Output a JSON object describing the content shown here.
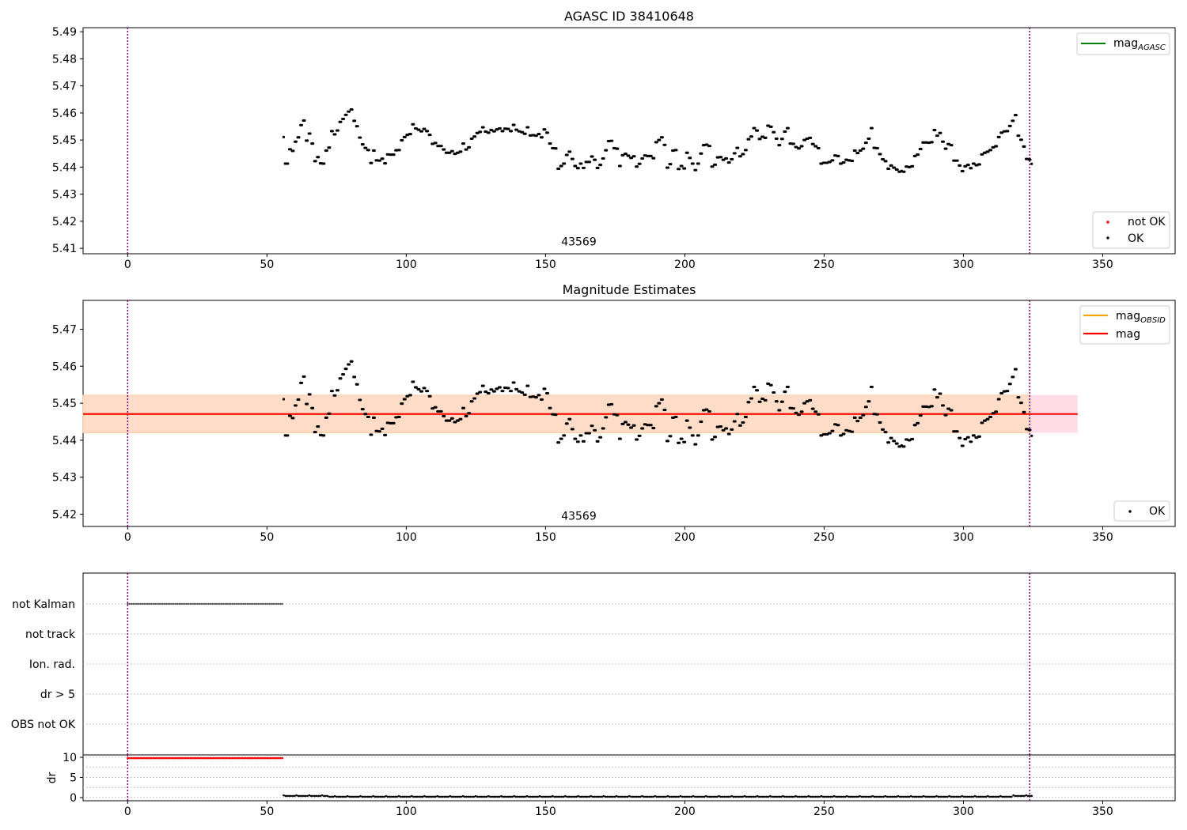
{
  "figure": {
    "top_title": "AGASC ID 38410648",
    "middle_title": "Magnitude Estimates",
    "obsid_label": "43569"
  },
  "legends": {
    "top_line": "mag",
    "top_line_sub": "AGASC",
    "top_points_not_ok": "not OK",
    "top_points_ok": "OK",
    "mid_line_obsid": "mag",
    "mid_line_obsid_sub": "OBSID",
    "mid_line_mag": "mag",
    "mid_points_ok": "OK"
  },
  "colors": {
    "ok": "#000000",
    "not_ok": "#ff0000",
    "mag_agasc": "#008000",
    "mag_obsid": "#ffa500",
    "mag": "#ff0000",
    "obs_boundary": "#800080",
    "band_outer": "#ffdce6",
    "band_inner": "#ffdcc8"
  },
  "chart_data": [
    {
      "type": "scatter",
      "title": "AGASC ID 38410648",
      "xlim": [
        -16,
        376
      ],
      "ylim": [
        5.408,
        5.4915
      ],
      "x_ticks": [
        0,
        50,
        100,
        150,
        200,
        250,
        300,
        350
      ],
      "y_ticks": [
        5.41,
        5.42,
        5.43,
        5.44,
        5.45,
        5.46,
        5.47,
        5.48,
        5.49
      ],
      "grid": false,
      "legend": [
        "top-right",
        "bottom-right"
      ],
      "obs_start": 0,
      "obs_end": 323.8,
      "annotation": {
        "text": "43569",
        "x": 154,
        "y": 5.411
      },
      "series": [
        {
          "name": "OK",
          "x_start": 56,
          "x_end": 324.5,
          "n": 410,
          "values": "magnitude_ok"
        },
        {
          "name": "not OK",
          "values": []
        }
      ]
    },
    {
      "type": "scatter",
      "title": "Magnitude Estimates",
      "xlim": [
        -16,
        376
      ],
      "ylim": [
        5.4167,
        5.4778
      ],
      "x_ticks": [
        0,
        50,
        100,
        150,
        200,
        250,
        300,
        350
      ],
      "y_ticks": [
        5.42,
        5.43,
        5.44,
        5.45,
        5.46,
        5.47
      ],
      "grid": false,
      "legend": [
        "top-right",
        "bottom-right"
      ],
      "obs_start": 0,
      "obs_end": 323.8,
      "mag_obsid": 5.4471,
      "mag": 5.4471,
      "band_obsid": [
        5.442,
        5.4522
      ],
      "band_obsid_x": [
        -16,
        324
      ],
      "band_mag_x": [
        -16,
        341
      ],
      "annotation": {
        "text": "43569",
        "x": 154,
        "y": 5.4185
      }
    },
    {
      "type": "scatter",
      "title": "",
      "xlim": [
        -16,
        376
      ],
      "categories": [
        "not Kalman",
        "not track",
        "Ion. rad.",
        "dr > 5",
        "OBS not OK"
      ],
      "flags": [
        {
          "name": "not Kalman",
          "x_start": 0,
          "x_end": 55.5,
          "n": 85
        }
      ],
      "grid": true
    },
    {
      "type": "scatter",
      "title": "",
      "xlim": [
        -16,
        376
      ],
      "ylim": [
        -0.8,
        10.6
      ],
      "x_ticks": [
        0,
        50,
        100,
        150,
        200,
        250,
        300,
        350
      ],
      "y_ticks": [
        0,
        5,
        10
      ],
      "ylabel": "dr",
      "grid": true,
      "series": [
        {
          "name": "dr",
          "x_start": 0,
          "x_end": 55.5,
          "n": 85,
          "value": 9.8,
          "ok": false
        },
        {
          "name": "dr",
          "x_start": 56,
          "x_end": 324.5,
          "n": 410,
          "value": 0.2,
          "ok": true
        }
      ]
    }
  ],
  "magnitude_ok": [
    5.4511,
    5.4413,
    5.4413,
    5.4413,
    5.4466,
    5.4466,
    5.446,
    5.446,
    5.4494,
    5.4494,
    5.451,
    5.451,
    5.4555,
    5.4555,
    5.4572,
    5.4572,
    5.4498,
    5.4498,
    5.4524,
    5.4524,
    5.4487,
    5.4487,
    5.4422,
    5.4422,
    5.4437,
    5.4437,
    5.4414,
    5.4414,
    5.4413,
    5.4413,
    5.4461,
    5.4461,
    5.4472,
    5.4472,
    5.4533,
    5.4533,
    5.4521,
    5.4521,
    5.4535,
    5.4535,
    5.4567,
    5.4567,
    5.4578,
    5.4578,
    5.4593,
    5.4593,
    5.4605,
    5.4605,
    5.4613,
    5.4613,
    5.4571,
    5.4571,
    5.4551,
    5.4551,
    5.4509,
    5.4509,
    5.4484,
    5.4484,
    5.4471,
    5.4471,
    5.4463,
    5.4463,
    5.4415,
    5.4415,
    5.4461,
    5.4461,
    5.4425,
    5.4425,
    5.4424,
    5.4424,
    5.4431,
    5.4431,
    5.4414,
    5.4414,
    5.4447,
    5.4447,
    5.4446,
    5.4446,
    5.4446,
    5.4446,
    5.4462,
    5.4462,
    5.4463,
    5.4463,
    5.4499,
    5.4499,
    5.4511,
    5.4511,
    5.4519,
    5.4519,
    5.4522,
    5.4522,
    5.4558,
    5.4558,
    5.4543,
    5.4543,
    5.4538,
    5.4538,
    5.4532,
    5.4532,
    5.4541,
    5.4541,
    5.4533,
    5.4533,
    5.4519,
    5.4519,
    5.4486,
    5.4486,
    5.4489,
    5.4489,
    5.4478,
    5.4478,
    5.4478,
    5.4478,
    5.4465,
    5.4465,
    5.4453,
    5.4453,
    5.4453,
    5.4453,
    5.4459,
    5.4459,
    5.4449,
    5.4449,
    5.4453,
    5.4453,
    5.4457,
    5.4457,
    5.4487,
    5.4487,
    5.4465,
    5.4465,
    5.4473,
    5.4473,
    5.4505,
    5.4505,
    5.4513,
    5.4513,
    5.4526,
    5.4526,
    5.453,
    5.453,
    5.4547,
    5.4547,
    5.4531,
    5.4531,
    5.4527,
    5.4527,
    5.4537,
    5.4537,
    5.4532,
    5.4532,
    5.4539,
    5.4539,
    5.4543,
    5.4543,
    5.4533,
    5.4533,
    5.4542,
    5.4542,
    5.4541,
    5.4541,
    5.4533,
    5.4533,
    5.4556,
    5.4556,
    5.4538,
    5.4538,
    5.4532,
    5.4532,
    5.4529,
    5.4529,
    5.4523,
    5.4523,
    5.4547,
    5.4547,
    5.4517,
    5.4517,
    5.4518,
    5.4518,
    5.4516,
    5.4516,
    5.4522,
    5.4522,
    5.451,
    5.451,
    5.4539,
    5.4539,
    5.4527,
    5.4527,
    5.4487,
    5.4487,
    5.447,
    5.447,
    5.4469,
    5.4469,
    5.4394,
    5.4394,
    5.4404,
    5.4404,
    5.4413,
    5.4413,
    5.4445,
    5.4445,
    5.4457,
    5.4457,
    5.443,
    5.443,
    5.4404,
    5.4404,
    5.4396,
    5.4396,
    5.4413,
    5.4413,
    5.4397,
    5.4397,
    5.4419,
    5.4419,
    5.4419,
    5.4419,
    5.4439,
    5.4439,
    5.4427,
    5.4427,
    5.4397,
    5.4397,
    5.4408,
    5.4408,
    5.4432,
    5.4432,
    5.4462,
    5.4462,
    5.4496,
    5.4496,
    5.4497,
    5.4497,
    5.447,
    5.447,
    5.4468,
    5.4468,
    5.4404,
    5.4404,
    5.4444,
    5.4444,
    5.4449,
    5.4449,
    5.4442,
    5.4442,
    5.4434,
    5.4434,
    5.444,
    5.444,
    5.4402,
    5.4402,
    5.4412,
    5.4412,
    5.4432,
    5.4432,
    5.4443,
    5.4443,
    5.4441,
    5.4441,
    5.4441,
    5.4441,
    5.4433,
    5.4433,
    5.4492,
    5.4492,
    5.45,
    5.45,
    5.451,
    5.451,
    5.4482,
    5.4482,
    5.4398,
    5.4398,
    5.4411,
    5.4411,
    5.4461,
    5.4461,
    5.4463,
    5.4463,
    5.4393,
    5.4393,
    5.4404,
    5.4404,
    5.4395,
    5.4395,
    5.4453,
    5.4453,
    5.4434,
    5.4434,
    5.4413,
    5.4413,
    5.4389,
    5.4389,
    5.4413,
    5.4413,
    5.445,
    5.445,
    5.4481,
    5.4481,
    5.4483,
    5.4483,
    5.4478,
    5.4478,
    5.4402,
    5.4402,
    5.4409,
    5.4409,
    5.4436,
    5.4436,
    5.4437,
    5.4437,
    5.4427,
    5.4427,
    5.4432,
    5.4432,
    5.4417,
    5.4417,
    5.4429,
    5.4429,
    5.4451,
    5.4451,
    5.4471,
    5.4471,
    5.444,
    5.444,
    5.4448,
    5.4448,
    5.4463,
    5.4463,
    5.4503,
    5.4503,
    5.4513,
    5.4513,
    5.4544,
    5.4544,
    5.4535,
    5.4535,
    5.4504,
    5.4504,
    5.4512,
    5.4512,
    5.4508,
    5.4508,
    5.4553,
    5.4553,
    5.4549,
    5.4549,
    5.4529,
    5.4529,
    5.4505,
    5.4505,
    5.4481,
    5.4481,
    5.4504,
    5.4504,
    5.4531,
    5.4531,
    5.4544,
    5.4544,
    5.4487,
    5.4487,
    5.4486,
    5.4486,
    5.4474,
    5.4474,
    5.4469,
    5.4469,
    5.4477,
    5.4477,
    5.45,
    5.45,
    5.4505,
    5.4505,
    5.4508,
    5.4508,
    5.4485,
    5.4485,
    5.4477,
    5.4477,
    5.447,
    5.447,
    5.4413,
    5.4413,
    5.4416,
    5.4416,
    5.4416,
    5.4416,
    5.4419,
    5.4419,
    5.4425,
    5.4425,
    5.4443,
    5.4443,
    5.4441,
    5.4441,
    5.4413,
    5.4413,
    5.4417,
    5.4417,
    5.4427,
    5.4427,
    5.4425,
    5.4425,
    5.4423,
    5.4423,
    5.4461,
    5.4461,
    5.4452,
    5.4452,
    5.4461,
    5.4461,
    5.4468,
    5.4468,
    5.449,
    5.449,
    5.4505,
    5.4505,
    5.4544,
    5.4544,
    5.4471,
    5.4471,
    5.447,
    5.447,
    5.4448,
    5.4448,
    5.4429,
    5.4429,
    5.4422,
    5.4422,
    5.4394,
    5.4394,
    5.4406,
    5.4406,
    5.4398,
    5.4398,
    5.4391,
    5.4391,
    5.4383
  ],
  "magnitude_ok_tail": [
    5.4383,
    5.4386,
    5.4383,
    5.4383,
    5.4402,
    5.4402,
    5.44,
    5.44,
    5.4403,
    5.4403,
    5.4441,
    5.4441,
    5.4446,
    5.4446,
    5.4467,
    5.4467,
    5.4491,
    5.4491,
    5.4491,
    5.4491,
    5.449,
    5.449,
    5.4492,
    5.4492,
    5.4537,
    5.4537,
    5.4516,
    5.4516,
    5.4526,
    5.4526,
    5.4494,
    5.4494,
    5.4468,
    5.4468,
    5.4485,
    5.4485,
    5.4481,
    5.4481,
    5.4424,
    5.4424,
    5.4424,
    5.4424,
    5.4406,
    5.4406,
    5.4385,
    5.4385,
    5.4403,
    5.4403,
    5.4408,
    5.4408,
    5.4396,
    5.4396,
    5.4413,
    5.4413,
    5.4407,
    5.4407,
    5.441,
    5.441,
    5.4447,
    5.4447,
    5.4453,
    5.4453,
    5.4457,
    5.4457,
    5.4463,
    5.4463,
    5.4473,
    5.4473,
    5.4477,
    5.4477,
    5.4511,
    5.4511,
    5.4527,
    5.4527,
    5.4532,
    5.4532,
    5.4533,
    5.4533,
    5.4552,
    5.4552,
    5.4571,
    5.4571,
    5.4592,
    5.4592,
    5.4516,
    5.4516,
    5.4501,
    5.4501,
    5.4476,
    5.4476,
    5.443,
    5.443,
    5.4428,
    5.4428,
    5.4412
  ]
}
